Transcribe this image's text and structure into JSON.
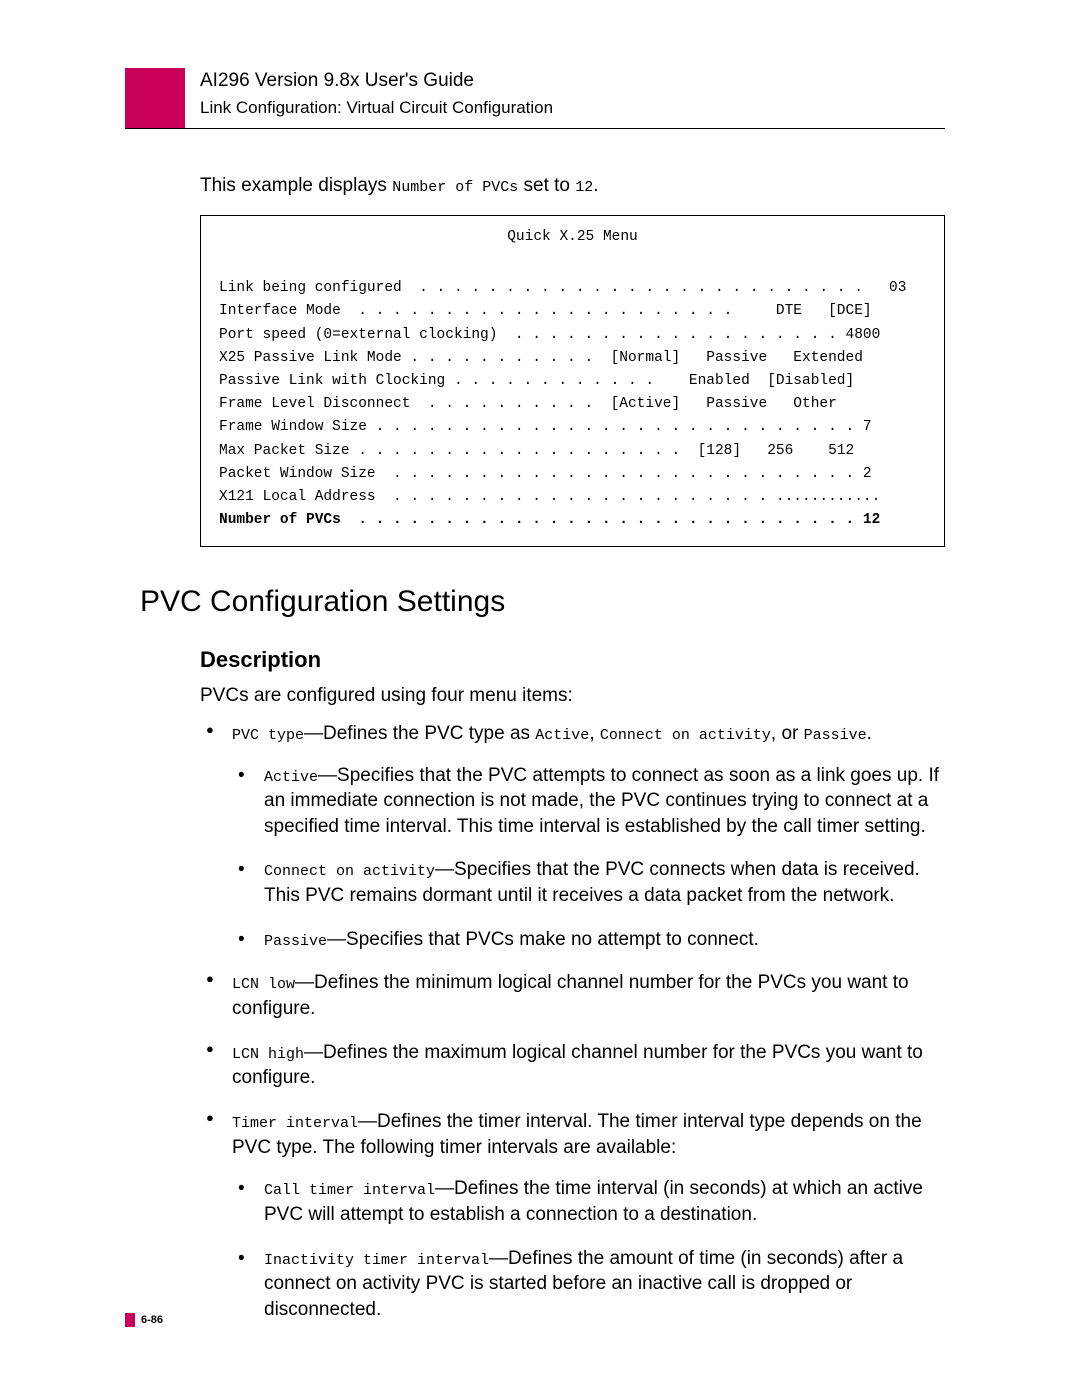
{
  "header": {
    "title": "AI296 Version 9.8x User's Guide",
    "subtitle": "Link Configuration: Virtual Circuit Configuration"
  },
  "intro": {
    "prefix": "This example displays ",
    "param": "Number of PVCs",
    "middle": " set to ",
    "value": "12",
    "suffix": "."
  },
  "codebox": {
    "title": "Quick X.25 Menu",
    "lines": [
      "Link being configured  . . . . . . . . . . . . . . . . . . . . . . . . . .   03",
      "",
      "Interface Mode  . . . . . . . . . . . . . . . . . . . . . .     DTE   [DCE]",
      "Port speed (0=external clocking)  . . . . . . . . . . . . . . . . . . . 4800",
      "X25 Passive Link Mode . . . . . . . . . . .  [Normal]   Passive   Extended",
      "Passive Link with Clocking . . . . . . . . . . . .    Enabled  [Disabled]",
      "Frame Level Disconnect  . . . . . . . . . .  [Active]   Passive   Other",
      "Frame Window Size . . . . . . . . . . . . . . . . . . . . . . . . . . . . 7",
      "Max Packet Size . . . . . . . . . . . . . . . . . . .  [128]   256    512",
      "Packet Window Size  . . . . . . . . . . . . . . . . . . . . . . . . . . . 2",
      "X121 Local Address  . . . . . . . . . . . . . . . . . . . . . . ............"
    ],
    "bold_line_label": "Number of PVCs  . . . . . . . . . . . . . . . . . . . . . . . . . . . . . 12"
  },
  "section": {
    "heading": "PVC Configuration Settings",
    "desc_heading": "Description",
    "desc_intro": "PVCs are configured using four menu items:"
  },
  "bullets": {
    "pvc_type": {
      "term": "PVC type",
      "text1": "—Defines the PVC type as ",
      "opt1": "Active",
      "sep1": ", ",
      "opt2": "Connect on activity",
      "sep2": ", or ",
      "opt3": "Passive",
      "end": "."
    },
    "active": {
      "term": "Active",
      "text": "—Specifies that the PVC attempts to connect as soon as a link goes up. If an immediate connection is not made, the PVC continues trying to connect at a specified time interval. This time interval is established by the call timer setting."
    },
    "connect": {
      "term": "Connect on activity",
      "text": "—Specifies that the PVC connects when data is received. This PVC remains dormant until it receives a data packet from the network."
    },
    "passive": {
      "term": "Passive",
      "text": "—Specifies that PVCs make no attempt to connect."
    },
    "lcn_low": {
      "term": "LCN low",
      "text": "—Defines the minimum logical channel number for the PVCs you want to configure."
    },
    "lcn_high": {
      "term": "LCN high",
      "text": "—Defines the maximum logical channel number for the PVCs you want to configure."
    },
    "timer": {
      "term": "Timer interval",
      "text": "—Defines the timer interval. The timer interval type depends on the PVC type. The following timer intervals are available:"
    },
    "call_timer": {
      "term": "Call timer interval",
      "text": "—Defines the time interval (in seconds) at which an active PVC will attempt to establish a connection to a destination."
    },
    "inactivity": {
      "term": "Inactivity timer interval",
      "text": "—Defines the amount of time (in seconds) after a connect on activity PVC is started before an inactive call is dropped or disconnected."
    }
  },
  "footer": {
    "page": "6-86"
  },
  "colors": {
    "accent": "#c8005a",
    "text": "#000000",
    "background": "#ffffff"
  },
  "typography": {
    "body_fontsize": 19,
    "mono_fontsize": 15,
    "heading_fontsize": 30,
    "subheading_fontsize": 22
  }
}
